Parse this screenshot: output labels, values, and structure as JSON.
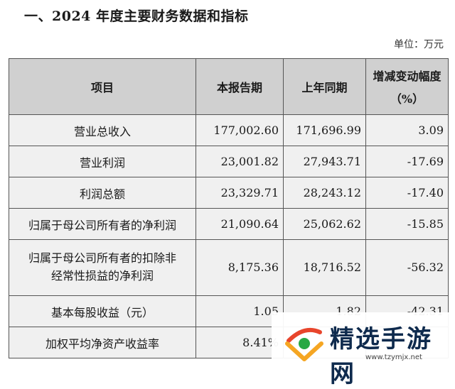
{
  "heading": "一、2024 年度主要财务数据和指标",
  "unit": "单位：万元",
  "table": {
    "headers": [
      "项目",
      "本报告期",
      "上年同期",
      "增减变动幅度（%）"
    ],
    "header_change_line1": "增减变动幅度",
    "header_change_line2": "（%）",
    "rows": [
      {
        "item": "营业总收入",
        "current": "177,002.60",
        "previous": "171,696.99",
        "change": "3.09"
      },
      {
        "item": "营业利润",
        "current": "23,001.82",
        "previous": "27,943.71",
        "change": "-17.69"
      },
      {
        "item": "利润总额",
        "current": "23,329.71",
        "previous": "28,243.12",
        "change": "-17.40"
      },
      {
        "item": "归属于母公司所有者的净利润",
        "current": "21,090.64",
        "previous": "25,062.62",
        "change": "-15.85"
      },
      {
        "item_line1": "归属于母公司所有者的扣除非",
        "item_line2": "经常性损益的净利润",
        "current": "8,175.36",
        "previous": "18,716.52",
        "change": "-56.32"
      },
      {
        "item": "基本每股收益（元）",
        "current": "1.05",
        "previous": "1.82",
        "change": "-42.31"
      },
      {
        "item": "加权平均净资产收益率",
        "current": "8.41%",
        "previous": "",
        "change": ""
      }
    ]
  },
  "watermark": {
    "text": "精选手游网",
    "url": "www.tzymjx.net",
    "logo_colors": [
      "#e8452c",
      "#f5a623",
      "#27a844"
    ]
  }
}
